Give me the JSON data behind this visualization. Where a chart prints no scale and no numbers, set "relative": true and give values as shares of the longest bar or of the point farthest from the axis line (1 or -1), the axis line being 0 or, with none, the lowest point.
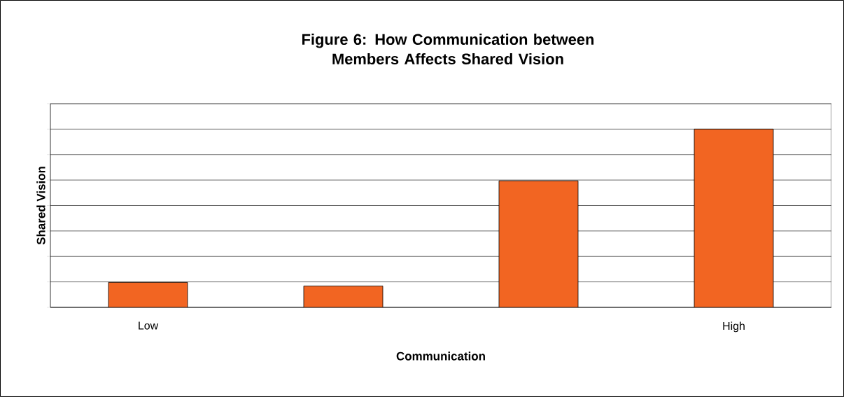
{
  "chart_data": {
    "type": "bar",
    "title": "Figure 6: How Communication between Members Affects Shared Vision",
    "xlabel": "Communication",
    "ylabel": "Shared Vision",
    "categories": [
      "Low",
      null,
      null,
      "High"
    ],
    "values": [
      0.14,
      0.12,
      0.71,
      1
    ],
    "color": "#f26522",
    "relative": true,
    "grid": "y"
  }
}
